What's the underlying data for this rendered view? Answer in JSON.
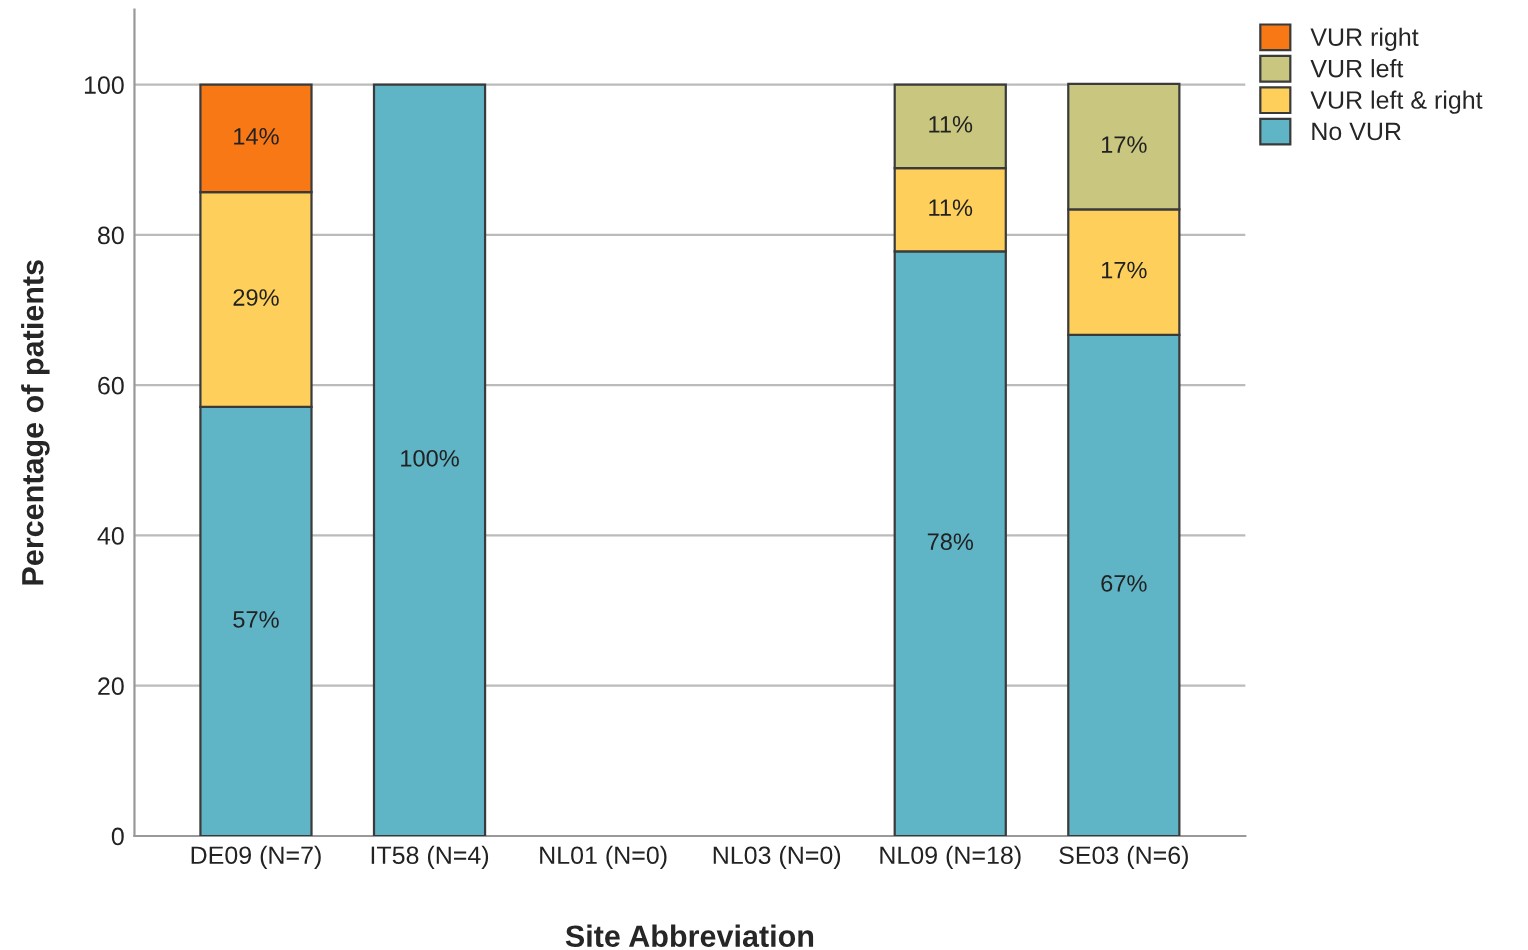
{
  "chart_data": {
    "type": "bar",
    "stacked": true,
    "xlabel": "Site Abbreviation",
    "ylabel": "Percentage of patients",
    "categories": [
      "DE09 (N=7)",
      "IT58 (N=4)",
      "NL01 (N=0)",
      "NL03 (N=0)",
      "NL09 (N=18)",
      "SE03 (N=6)"
    ],
    "series": [
      {
        "name": "No VUR",
        "color": "#5fb4c6",
        "values": [
          57.1,
          100,
          null,
          null,
          77.8,
          66.7
        ],
        "value_labels": [
          "57%",
          "100%",
          null,
          null,
          "78%",
          "67%"
        ]
      },
      {
        "name": "VUR left & right",
        "color": "#fed05b",
        "values": [
          28.6,
          null,
          null,
          null,
          11.1,
          16.7
        ],
        "value_labels": [
          "29%",
          null,
          null,
          null,
          "11%",
          "17%"
        ]
      },
      {
        "name": "VUR left",
        "color": "#c9c680",
        "values": [
          null,
          null,
          null,
          null,
          11.1,
          16.7
        ],
        "value_labels": [
          null,
          null,
          null,
          null,
          "11%",
          "17%"
        ]
      },
      {
        "name": "VUR right",
        "color": "#f87816",
        "values": [
          14.3,
          null,
          null,
          null,
          null,
          null
        ],
        "value_labels": [
          "14%",
          null,
          null,
          null,
          null,
          null
        ]
      }
    ],
    "ylim": [
      0,
      110
    ],
    "yticks": [
      0,
      20,
      40,
      60,
      80,
      100
    ],
    "grid": "y",
    "legend": "top right"
  }
}
